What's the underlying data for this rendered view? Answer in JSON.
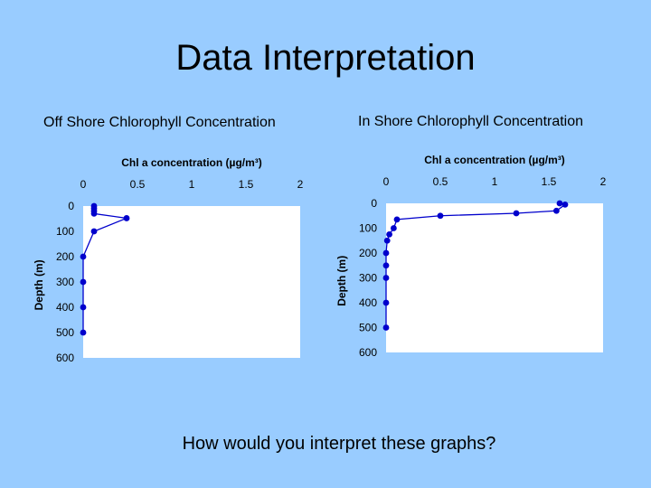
{
  "slide": {
    "title": "Data Interpretation",
    "left_subtitle": "Off Shore Chlorophyll Concentration",
    "right_subtitle": "In Shore Chlorophyll Concentration",
    "question": "How would you interpret these graphs?"
  },
  "colors": {
    "background": "#99ccff",
    "plot_area": "#ffffff",
    "series": "#0000cc"
  },
  "chart_data": [
    {
      "type": "line",
      "title": "Chl a concentration (µg/m³)",
      "xlabel": "Chl a concentration (µg/m³)",
      "ylabel": "Depth (m)",
      "xlim": [
        0,
        2
      ],
      "ylim": [
        0,
        600
      ],
      "y_inverted": true,
      "x_ticks": [
        "0",
        "0.5",
        "1",
        "1.5",
        "2"
      ],
      "y_ticks": [
        "0",
        "100",
        "200",
        "300",
        "400",
        "500",
        "600"
      ],
      "grid": false,
      "series": [
        {
          "points": [
            {
              "x": 0.1,
              "y": 0
            },
            {
              "x": 0.1,
              "y": 10
            },
            {
              "x": 0.1,
              "y": 20
            },
            {
              "x": 0.1,
              "y": 30
            },
            {
              "x": 0.4,
              "y": 48
            },
            {
              "x": 0.1,
              "y": 100
            },
            {
              "x": 0.0,
              "y": 200
            },
            {
              "x": 0.0,
              "y": 300
            },
            {
              "x": 0.0,
              "y": 400
            },
            {
              "x": 0.0,
              "y": 500
            }
          ]
        }
      ]
    },
    {
      "type": "line",
      "title": "Chl a concentration (µg/m³)",
      "xlabel": "Chl a concentration (µg/m³)",
      "ylabel": "Depth (m)",
      "xlim": [
        0,
        2
      ],
      "ylim": [
        0,
        600
      ],
      "y_inverted": true,
      "x_ticks": [
        "0",
        "0.5",
        "1",
        "1.5",
        "2"
      ],
      "y_ticks": [
        "0",
        "100",
        "200",
        "300",
        "400",
        "500",
        "600"
      ],
      "grid": false,
      "series": [
        {
          "points": [
            {
              "x": 1.6,
              "y": 0
            },
            {
              "x": 1.65,
              "y": 5
            },
            {
              "x": 1.57,
              "y": 30
            },
            {
              "x": 1.2,
              "y": 40
            },
            {
              "x": 0.5,
              "y": 50
            },
            {
              "x": 0.1,
              "y": 65
            },
            {
              "x": 0.07,
              "y": 100
            },
            {
              "x": 0.03,
              "y": 125
            },
            {
              "x": 0.01,
              "y": 150
            },
            {
              "x": 0.0,
              "y": 200
            },
            {
              "x": 0.0,
              "y": 250
            },
            {
              "x": 0.0,
              "y": 300
            },
            {
              "x": 0.0,
              "y": 400
            },
            {
              "x": 0.0,
              "y": 500
            }
          ]
        }
      ]
    }
  ]
}
